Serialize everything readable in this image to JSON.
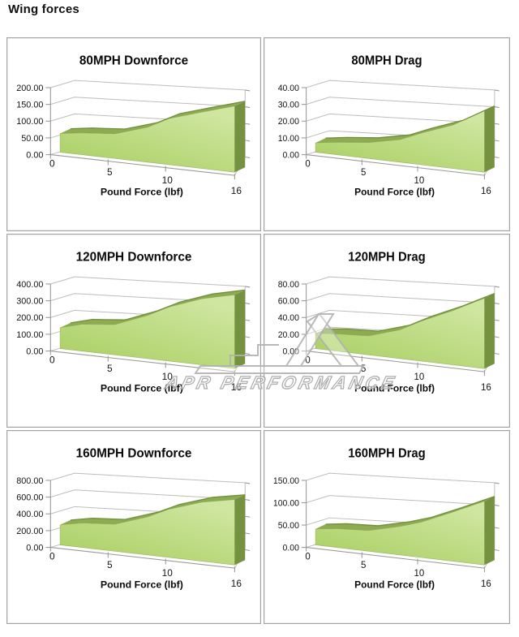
{
  "page": {
    "title": "Wing forces"
  },
  "watermark": {
    "text": "APR PERFORMANCE",
    "color": "#b2b2b2"
  },
  "style": {
    "area_light": "#cfe6a0",
    "area_main": "#a7cd5e",
    "band": "#8dac52",
    "band_edge": "#6f8f3b",
    "side": "#74923f",
    "grid": "#bcbcbc",
    "axis": "#999999",
    "panel_border": "#a2a2a2",
    "text": "#000000"
  },
  "chart_data": [
    {
      "type": "area",
      "title": "80MPH Downforce",
      "xlabel": "Pound Force (lbf)",
      "xlim": [
        0,
        16
      ],
      "ylim": [
        0,
        200
      ],
      "x_tick_labels": [
        "0",
        "5",
        "10",
        "16"
      ],
      "x_tick_positions": [
        0,
        5,
        10,
        16
      ],
      "y_tick_labels": [
        "0.00",
        "50.00",
        "100.00",
        "150.00",
        "200.00"
      ],
      "x": [
        0,
        2,
        5,
        8,
        10,
        13,
        16
      ],
      "values": [
        50,
        57,
        62,
        85,
        110,
        130,
        148
      ],
      "legend": null,
      "grid": true
    },
    {
      "type": "area",
      "title": "80MPH Drag",
      "xlabel": "Pound Force (lbf)",
      "xlim": [
        0,
        16
      ],
      "ylim": [
        0,
        40
      ],
      "x_tick_labels": [
        "0",
        "5",
        "10",
        "16"
      ],
      "x_tick_positions": [
        0,
        5,
        10,
        16
      ],
      "y_tick_labels": [
        "0.00",
        "10.00",
        "20.00",
        "30.00",
        "40.00"
      ],
      "x": [
        0,
        2,
        5,
        8,
        10,
        13,
        16
      ],
      "values": [
        5,
        6.5,
        8,
        11,
        15,
        20,
        27.5
      ],
      "legend": null,
      "grid": true
    },
    {
      "type": "area",
      "title": "120MPH Downforce",
      "xlabel": "Pound Force (lbf)",
      "xlim": [
        0,
        16
      ],
      "ylim": [
        0,
        400
      ],
      "x_tick_labels": [
        "0",
        "5",
        "10",
        "16"
      ],
      "x_tick_positions": [
        0,
        5,
        10,
        16
      ],
      "y_tick_labels": [
        "0.00",
        "100.00",
        "200.00",
        "300.00",
        "400.00"
      ],
      "x": [
        0,
        2,
        5,
        8,
        10,
        13,
        16
      ],
      "values": [
        112,
        140,
        152,
        210,
        258,
        305,
        330
      ],
      "legend": null,
      "grid": true
    },
    {
      "type": "area",
      "title": "120MPH Drag",
      "xlabel": "Pound Force (lbf)",
      "xlim": [
        0,
        16
      ],
      "ylim": [
        0,
        80
      ],
      "x_tick_labels": [
        "0",
        "5",
        "10",
        "16"
      ],
      "x_tick_positions": [
        0,
        5,
        10,
        16
      ],
      "y_tick_labels": [
        "0.00",
        "20.00",
        "40.00",
        "60.00",
        "80.00"
      ],
      "x": [
        0,
        2,
        5,
        8,
        10,
        13,
        16
      ],
      "values": [
        16,
        18,
        19,
        28,
        38,
        50,
        63
      ],
      "legend": null,
      "grid": true
    },
    {
      "type": "area",
      "title": "160MPH Downforce",
      "xlabel": "Pound Force (lbf)",
      "xlim": [
        0,
        16
      ],
      "ylim": [
        0,
        800
      ],
      "x_tick_labels": [
        "0",
        "5",
        "10",
        "16"
      ],
      "x_tick_positions": [
        0,
        5,
        10,
        16
      ],
      "y_tick_labels": [
        "0.00",
        "200.00",
        "400.00",
        "600.00",
        "800.00"
      ],
      "x": [
        0,
        2,
        5,
        8,
        10,
        13,
        16
      ],
      "values": [
        215,
        255,
        272,
        370,
        460,
        545,
        585
      ],
      "legend": null,
      "grid": true
    },
    {
      "type": "area",
      "title": "160MPH Drag",
      "xlabel": "Pound Force (lbf)",
      "xlim": [
        0,
        16
      ],
      "ylim": [
        0,
        150
      ],
      "x_tick_labels": [
        "0",
        "5",
        "10",
        "16"
      ],
      "x_tick_positions": [
        0,
        5,
        10,
        16
      ],
      "y_tick_labels": [
        "0.00",
        "50.00",
        "100.00",
        "150.00"
      ],
      "x": [
        0,
        2,
        5,
        8,
        10,
        13,
        16
      ],
      "values": [
        32,
        37,
        39,
        52,
        63,
        85,
        107
      ],
      "legend": null,
      "grid": true
    }
  ]
}
